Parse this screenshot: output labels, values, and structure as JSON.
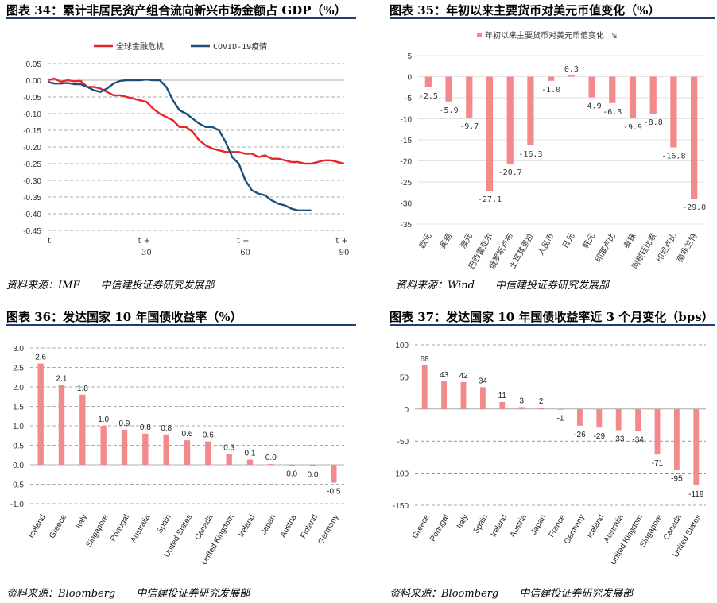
{
  "panels": [
    {
      "title": "图表 34：累计非居民资产组合流向新兴市场金额占 GDP（%）",
      "source": "资料来源：IMF　　中信建投证券研究发展部"
    },
    {
      "title": "图表 35：年初以来主要货币对美元币值变化（%）",
      "source": "资料来源：Wind　　中信建投证券研究发展部"
    },
    {
      "title": "图表 36：发达国家 10 年国债收益率（%）",
      "source": "资料来源：Bloomberg　　中信建投证券研究发展部"
    },
    {
      "title": "图表 37：发达国家 10 年国债收益率近 3 个月变化（bps）",
      "source": "资料来源：Bloomberg　　中信建投证券研究发展部"
    }
  ],
  "colors": {
    "red": "#e8232b",
    "navy": "#1f4e79",
    "pink": "#f4898c",
    "rule": "#1f3f73",
    "grid": "#d0d0d0"
  },
  "chart_data": [
    {
      "type": "line",
      "x_tick_labels": [
        "t",
        "t +\n30",
        "t +\n60",
        "t +\n90"
      ],
      "x_ticks": [
        0,
        30,
        60,
        90
      ],
      "ylim": [
        -0.45,
        0.05
      ],
      "yticks": [
        "0.05",
        "0.00",
        "-0.05",
        "-0.10",
        "-0.15",
        "-0.20",
        "-0.25",
        "-0.30",
        "-0.35",
        "-0.40",
        "-0.45"
      ],
      "series": [
        {
          "name": "全球金融危机",
          "color": "#e8232b",
          "x": [
            0,
            2,
            4,
            6,
            8,
            10,
            12,
            14,
            16,
            18,
            20,
            22,
            24,
            26,
            28,
            30,
            32,
            34,
            36,
            38,
            40,
            42,
            44,
            46,
            48,
            50,
            52,
            54,
            56,
            58,
            60,
            62,
            64,
            66,
            68,
            70,
            72,
            74,
            76,
            78,
            80,
            82,
            84,
            86,
            88,
            90
          ],
          "y": [
            0.0,
            0.005,
            -0.005,
            0.0,
            -0.003,
            -0.002,
            -0.02,
            -0.02,
            -0.025,
            -0.035,
            -0.045,
            -0.045,
            -0.05,
            -0.055,
            -0.06,
            -0.065,
            -0.085,
            -0.1,
            -0.11,
            -0.12,
            -0.14,
            -0.14,
            -0.155,
            -0.18,
            -0.195,
            -0.205,
            -0.21,
            -0.215,
            -0.215,
            -0.215,
            -0.22,
            -0.22,
            -0.23,
            -0.225,
            -0.235,
            -0.235,
            -0.24,
            -0.245,
            -0.245,
            -0.25,
            -0.25,
            -0.245,
            -0.24,
            -0.24,
            -0.245,
            -0.25
          ]
        },
        {
          "name": "COVID-19疫情",
          "color": "#1f4e79",
          "x": [
            0,
            2,
            4,
            6,
            8,
            10,
            12,
            14,
            16,
            18,
            20,
            22,
            24,
            26,
            28,
            30,
            32,
            34,
            36,
            38,
            40,
            42,
            44,
            46,
            48,
            50,
            52,
            54,
            56,
            58,
            60,
            62,
            64,
            66,
            68,
            70,
            72,
            74,
            76,
            78,
            80
          ],
          "y": [
            -0.005,
            -0.01,
            -0.01,
            -0.008,
            -0.012,
            -0.012,
            -0.02,
            -0.03,
            -0.035,
            -0.025,
            -0.01,
            -0.002,
            0.0,
            0.0,
            0.0,
            0.002,
            0.0,
            0.0,
            -0.02,
            -0.06,
            -0.09,
            -0.1,
            -0.115,
            -0.13,
            -0.14,
            -0.14,
            -0.15,
            -0.185,
            -0.23,
            -0.25,
            -0.3,
            -0.33,
            -0.34,
            -0.345,
            -0.36,
            -0.37,
            -0.375,
            -0.385,
            -0.39,
            -0.39,
            -0.39
          ]
        }
      ]
    },
    {
      "type": "bar",
      "legend": "年初以来主要货币对美元币值变化　%",
      "categories": [
        "欧元",
        "英镑",
        "澳元",
        "巴西雷亚尔",
        "俄罗斯卢布",
        "土耳其里拉",
        "人民币",
        "日元",
        "韩元",
        "印度卢比",
        "泰铢",
        "阿根廷比索",
        "印尼卢比",
        "南非兰特"
      ],
      "values": [
        -2.5,
        -5.9,
        -9.7,
        -27.1,
        -20.7,
        -16.3,
        -1.0,
        0.3,
        -4.9,
        -6.3,
        -9.9,
        -8.8,
        -16.8,
        -29.0
      ],
      "labels": [
        "-2.5",
        "-5.9",
        "-9.7",
        "-27.1",
        "-20.7",
        "-16.3",
        "-1.0",
        "0.3",
        "-4.9",
        "-6.3",
        "-9.9",
        "-8.8",
        "-16.8",
        "-29.0"
      ],
      "ylim": [
        -35,
        5
      ],
      "yticks": [
        "5",
        "0",
        "-5",
        "-10",
        "-15",
        "-20",
        "-25",
        "-30",
        "-35"
      ]
    },
    {
      "type": "bar",
      "categories": [
        "Iceland",
        "Greece",
        "Italy",
        "Singapore",
        "Portugal",
        "Australia",
        "Spain",
        "United States",
        "Canada",
        "United Kingdom",
        "Ireland",
        "Japan",
        "Austria",
        "Finland",
        "Germany"
      ],
      "values": [
        2.6,
        2.05,
        1.8,
        1.0,
        0.9,
        0.8,
        0.78,
        0.63,
        0.6,
        0.28,
        0.13,
        0.02,
        -0.01,
        -0.03,
        -0.46
      ],
      "labels": [
        "2.6",
        "2.1",
        "1.8",
        "1.0",
        "0.9",
        "0.8",
        "0.8",
        "0.6",
        "0.6",
        "0.3",
        "0.1",
        "0.0",
        "0.0",
        "0.0",
        "-0.5"
      ],
      "ylim": [
        -1.0,
        3.0
      ],
      "yticks": [
        "3.0",
        "2.5",
        "2.0",
        "1.5",
        "1.0",
        "0.5",
        "0.0",
        "-0.5",
        "-1.0"
      ]
    },
    {
      "type": "bar",
      "categories": [
        "Greece",
        "Portugal",
        "Italy",
        "Spain",
        "Ireland",
        "Austria",
        "Japan",
        "France",
        "Germany",
        "Iceland",
        "Australia",
        "United Kingdom",
        "Singapore",
        "Canada",
        "United States"
      ],
      "values": [
        68,
        43,
        42,
        34,
        11,
        3,
        2,
        -1,
        -26,
        -29,
        -33,
        -34,
        -71,
        -95,
        -119
      ],
      "labels": [
        "68",
        "43",
        "42",
        "34",
        "11",
        "3",
        "2",
        "-1",
        "-26",
        "-29",
        "-33",
        "-34",
        "-71",
        "-95",
        "-119"
      ],
      "ylim": [
        -150,
        100
      ],
      "yticks": [
        "100",
        "50",
        "0",
        "-50",
        "-100",
        "-150"
      ]
    }
  ]
}
